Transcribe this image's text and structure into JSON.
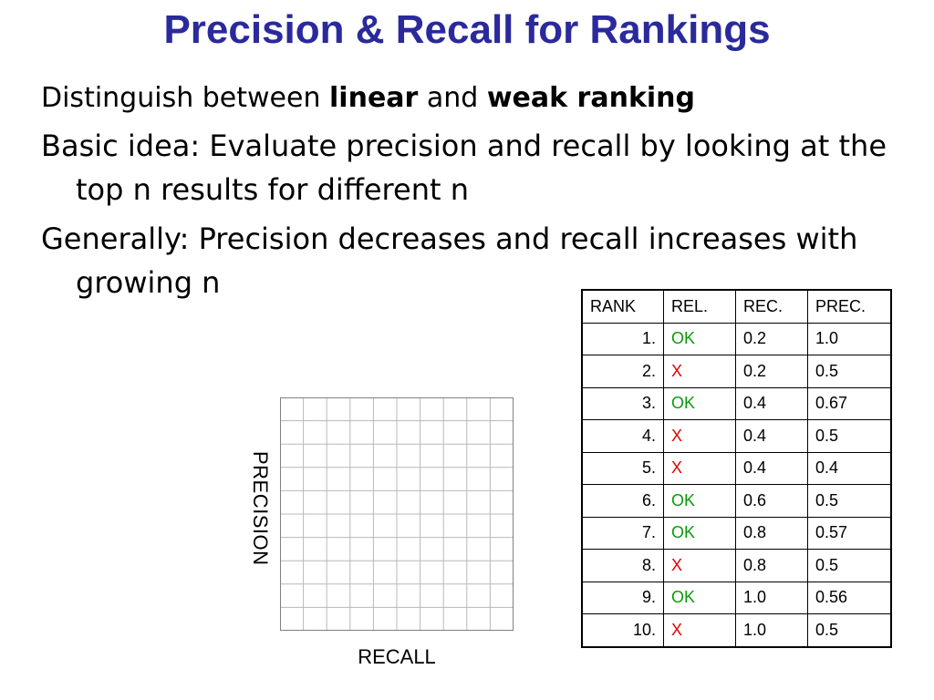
{
  "slide": {
    "title": "Precision & Recall for Rankings",
    "bullet1": {
      "prefix": "Distinguish between ",
      "kw1": "linear",
      "mid": " and ",
      "kw2": "weak ranking"
    },
    "bullet2": "Basic idea: Evaluate precision and recall by looking at the top n results for different n",
    "bullet3": "Generally: Precision decreases and recall increases with growing n"
  },
  "chart_data": {
    "type": "scatter",
    "xlabel": "RECALL",
    "ylabel": "PRECISION",
    "grid": true,
    "series": []
  },
  "table": {
    "headers": [
      "RANK",
      "REL.",
      "REC.",
      "PREC."
    ],
    "rows": [
      [
        "1.",
        "OK",
        "0.2",
        "1.0"
      ],
      [
        "2.",
        "X",
        "0.2",
        "0.5"
      ],
      [
        "3.",
        "OK",
        "0.4",
        "0.67"
      ],
      [
        "4.",
        "X",
        "0.4",
        "0.5"
      ],
      [
        "5.",
        "X",
        "0.4",
        "0.4"
      ],
      [
        "6.",
        "OK",
        "0.6",
        "0.5"
      ],
      [
        "7.",
        "OK",
        "0.8",
        "0.57"
      ],
      [
        "8.",
        "X",
        "0.8",
        "0.5"
      ],
      [
        "9.",
        "OK",
        "1.0",
        "0.56"
      ],
      [
        "10.",
        "X",
        "1.0",
        "0.5"
      ]
    ],
    "colors": {
      "ok": "#0a9a0a",
      "x": "#e00000"
    }
  },
  "colors": {
    "title": "#2a2a9c"
  }
}
